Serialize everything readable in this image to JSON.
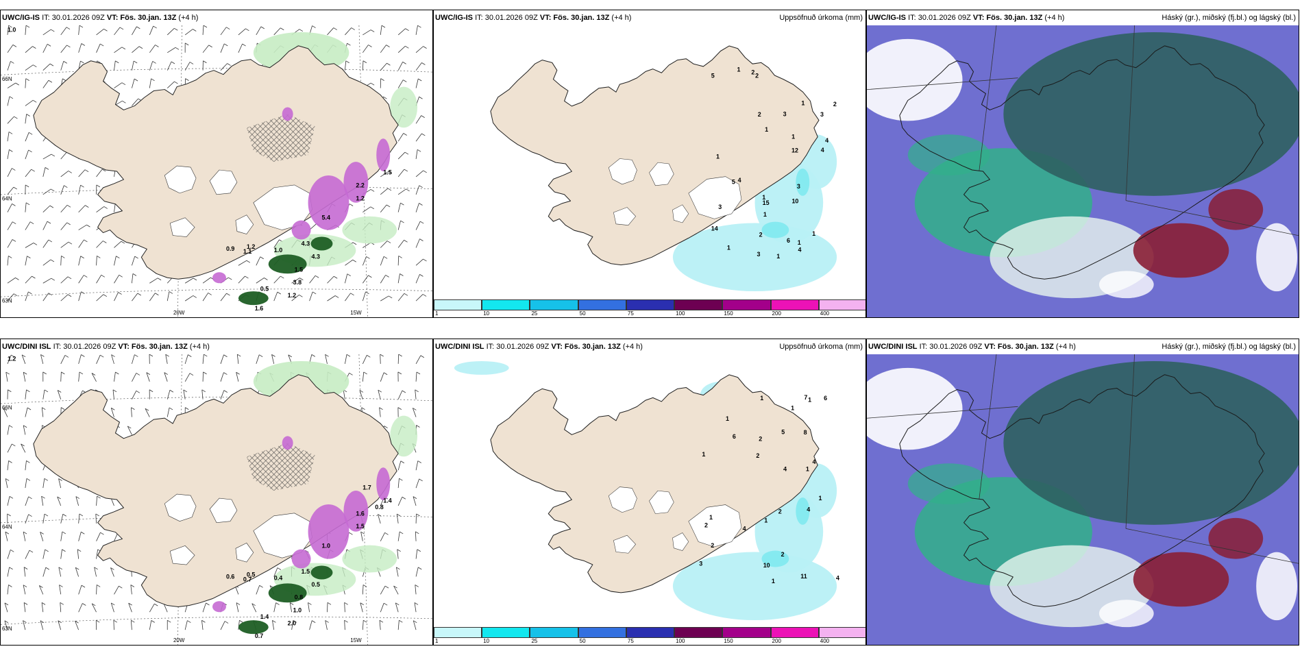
{
  "colors": {
    "land": "#efe2d2",
    "precip_light": "#b8f0f5",
    "precip_mid": "#7fe9f0",
    "rain_green_light": "#c6ecc3",
    "rain_green_dark": "#1d5e24",
    "snow_purple": "#c56ad3",
    "cloud_blue": "#6f6fd0",
    "cloud_dark": "#2f6060",
    "cloud_green": "#32b08a",
    "cloud_red": "#8a1f35"
  },
  "rows": [
    {
      "model": "UWC/IG-IS",
      "it": "IT: 30.01.2026 09Z",
      "vt_label": "VT:",
      "vt": "Fös. 30.jan. 13Z",
      "lead": "(+4 h)",
      "left_labels": [
        "1.0",
        "0.9",
        "1.1",
        "1.2",
        "1.0",
        "4.3",
        "1.5",
        "3.8",
        "4.3",
        "0.5",
        "1.2",
        "1.6",
        "5.4",
        "2.2",
        "1.5",
        "1.2"
      ],
      "mid_labels": [
        "1",
        "1",
        "1",
        "1",
        "1",
        "2",
        "2",
        "3",
        "3",
        "1",
        "1",
        "1",
        "1",
        "6",
        "12",
        "15",
        "10",
        "14",
        "4",
        "5",
        "4",
        "5",
        "4",
        "4",
        "2",
        "2",
        "3",
        "3",
        "3",
        "2",
        "1",
        "1"
      ],
      "axis": {
        "lon1": "20W",
        "lon2": "15W",
        "lat1": "66N",
        "lat2": "64N",
        "lat3": "63N"
      }
    },
    {
      "model": "UWC/DINI ISL",
      "it": "IT: 30.01.2026 09Z",
      "vt_label": "VT:",
      "vt": "Fös. 30.jan. 13Z",
      "lead": "(+4 h)",
      "left_labels": [
        "1.2",
        "0.6",
        "0.7",
        "0.5",
        "0.4",
        "1.5",
        "0.8",
        "1.0",
        "0.5",
        "1.4",
        "2.0",
        "0.7",
        "1.0",
        "1.6",
        "1.4",
        "1.5",
        "1.7",
        "0.8"
      ],
      "mid_labels": [
        "2",
        "1",
        "2",
        "2",
        "1",
        "1",
        "1",
        "1",
        "1",
        "1",
        "1",
        "6",
        "4",
        "8",
        "10",
        "7",
        "11",
        "2",
        "2",
        "1",
        "5",
        "3",
        "4",
        "4",
        "4",
        "4",
        "2",
        "6",
        "1"
      ],
      "axis": {
        "lon1": "20W",
        "lon2": "15W",
        "lat1": "66N",
        "lat2": "64N",
        "lat3": "63N"
      }
    }
  ],
  "precip_title": "Uppsöfnuð úrkoma (mm)",
  "cloud_title": "Háský (gr.), miðský (fj.bl.) og lágský (bl.)",
  "colorbar": {
    "ticks": [
      "1",
      "10",
      "25",
      "50",
      "75",
      "100",
      "150",
      "200",
      "400"
    ],
    "colors": [
      "#c8f7fa",
      "#13e7ef",
      "#16c1e9",
      "#3370e0",
      "#2a2fb0",
      "#6d0052",
      "#a3008a",
      "#ec12b6",
      "#f4b2f0"
    ]
  }
}
